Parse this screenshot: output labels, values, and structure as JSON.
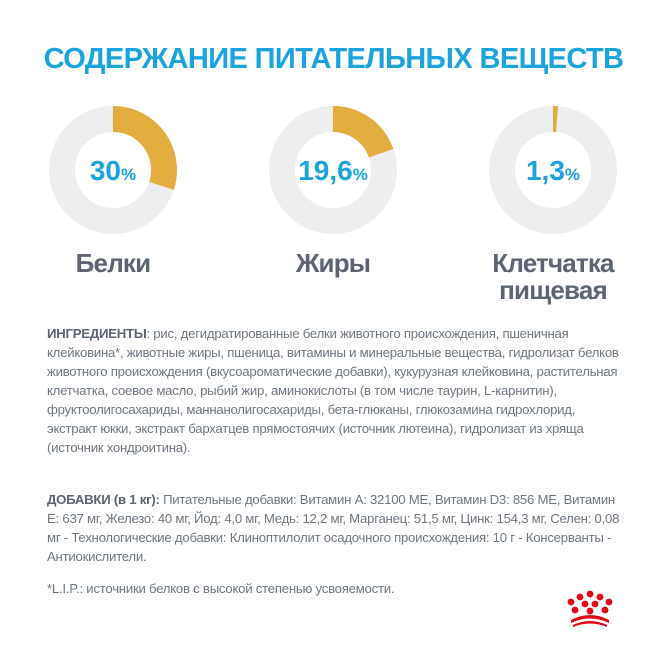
{
  "title": "СОДЕРЖАНИЕ ПИТАТЕЛЬНЫХ ВЕЩЕСТВ",
  "colors": {
    "accent": "#1aa3dc",
    "fill": "#e2ad3e",
    "track": "#edeef0",
    "text": "#5b6470",
    "logo": "#e30613"
  },
  "chart_data": [
    {
      "type": "pie",
      "style": "donut",
      "label": "Белки",
      "value": 30,
      "display": "30",
      "unit": "%"
    },
    {
      "type": "pie",
      "style": "donut",
      "label": "Жиры",
      "value": 19.6,
      "display": "19,6",
      "unit": "%"
    },
    {
      "type": "pie",
      "style": "donut",
      "label_lines": [
        "Клетчатка",
        "пищевая"
      ],
      "value": 1.3,
      "display": "1,3",
      "unit": "%"
    }
  ],
  "ingredients": {
    "heading": "ИНГРЕДИЕНТЫ",
    "text": ": рис, дегидратированные белки животного происхождения, пшеничная клейковина*, животные жиры, пшеница, витамины и минеральные вещества, гидролизат белков животного происхождения (вкусоароматические добавки), кукурузная клейковина, растительная клетчатка, соевое масло, рыбий жир, аминокислоты (в том числе таурин, L-карнитин), фруктоолигосахариды, маннанолигосахариды, бета-глюканы, глюкозамина гидрохлорид, экстракт юкки, экстракт бархатцев прямостоячих (источник лютеина), гидролизат из хряща (источник хондроитина)."
  },
  "additives": {
    "heading": "ДОБАВКИ (в 1 кг):",
    "text": " Питательные добавки: Витамин A: 32100 МЕ, Витамин D3: 856 МЕ, Витамин E: 637 мг, Железо: 40 мг, Йод: 4,0 мг, Медь: 12,2 мг, Марганец: 51,5 мг, Цинк: 154,3 мг, Селен: 0,08 мг - Технологические добавки: Клиноптилолит осадочного происхождения: 10 г - Консерванты - Антиокислители."
  },
  "footnote": "*L.I.P.: источники белков с высокой степенью усвояемости.",
  "logo": {
    "icon": "royal-canin-crown-icon"
  }
}
